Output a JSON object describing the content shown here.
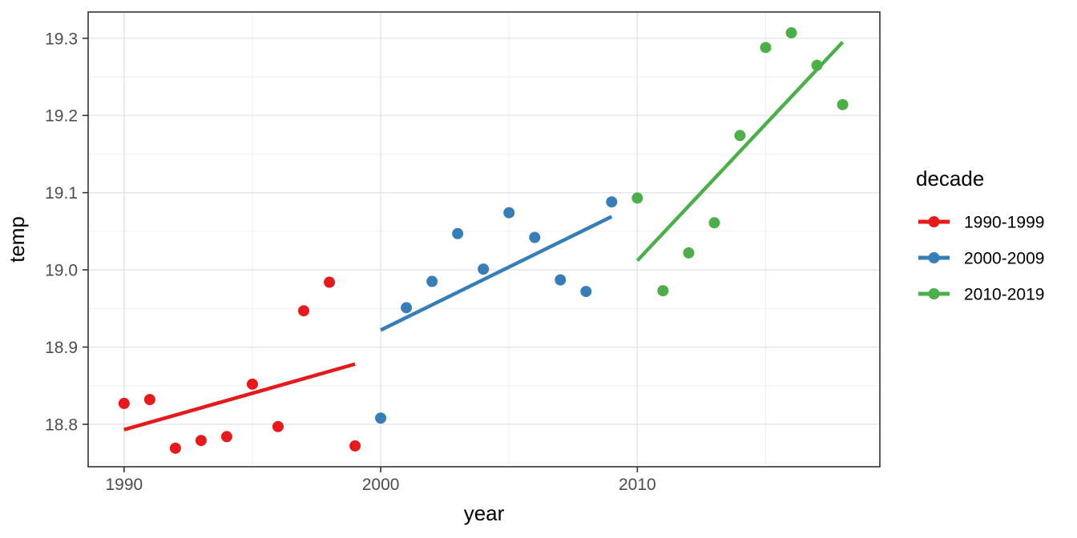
{
  "chart_data": {
    "type": "scatter",
    "title": "",
    "xlabel": "year",
    "ylabel": "temp",
    "grid": true,
    "x_axis": {
      "domain": [
        1988.6,
        2019.45
      ],
      "ticks": [
        1990,
        2000,
        2010
      ],
      "tick_labels": [
        "1990",
        "2000",
        "2010"
      ],
      "minor_ticks": [
        1995,
        2005,
        2015
      ]
    },
    "y_axis": {
      "domain": [
        18.745,
        19.334
      ],
      "ticks": [
        18.8,
        18.9,
        19.0,
        19.1,
        19.2,
        19.3
      ],
      "tick_labels": [
        "18.8",
        "18.9",
        "19.0",
        "19.1",
        "19.2",
        "19.3"
      ],
      "minor_ticks": [
        18.75,
        18.85,
        18.95,
        19.05,
        19.15,
        19.25
      ]
    },
    "legend": {
      "title": "decade",
      "position": "right",
      "entries": [
        {
          "label": "1990-1999",
          "color": "#E41A1C"
        },
        {
          "label": "2000-2009",
          "color": "#377EB8"
        },
        {
          "label": "2010-2019",
          "color": "#4DAF4A"
        }
      ]
    },
    "series": [
      {
        "name": "1990-1999",
        "color": "#E41A1C",
        "points": [
          [
            1990,
            18.827
          ],
          [
            1991,
            18.832
          ],
          [
            1992,
            18.769
          ],
          [
            1993,
            18.779
          ],
          [
            1994,
            18.784
          ],
          [
            1995,
            18.852
          ],
          [
            1996,
            18.797
          ],
          [
            1997,
            18.947
          ],
          [
            1998,
            18.984
          ],
          [
            1999,
            18.772
          ]
        ],
        "trend": {
          "x1": 1990,
          "y1": 18.793,
          "x2": 1999,
          "y2": 18.878
        }
      },
      {
        "name": "2000-2009",
        "color": "#377EB8",
        "points": [
          [
            2000,
            18.808
          ],
          [
            2001,
            18.951
          ],
          [
            2002,
            18.985
          ],
          [
            2003,
            19.047
          ],
          [
            2004,
            19.001
          ],
          [
            2005,
            19.074
          ],
          [
            2006,
            19.042
          ],
          [
            2007,
            18.987
          ],
          [
            2008,
            18.972
          ],
          [
            2009,
            19.088
          ]
        ],
        "trend": {
          "x1": 2000,
          "y1": 18.922,
          "x2": 2009,
          "y2": 19.069
        }
      },
      {
        "name": "2010-2019",
        "color": "#4DAF4A",
        "points": [
          [
            2010,
            19.093
          ],
          [
            2011,
            18.973
          ],
          [
            2012,
            19.022
          ],
          [
            2013,
            19.061
          ],
          [
            2014,
            19.174
          ],
          [
            2015,
            19.288
          ],
          [
            2016,
            19.307
          ],
          [
            2017,
            19.265
          ],
          [
            2018,
            19.214
          ]
        ],
        "trend": {
          "x1": 2010,
          "y1": 19.012,
          "x2": 2018,
          "y2": 19.295
        }
      }
    ],
    "style": {
      "panel_border_color": "#333333",
      "major_grid_color": "#e4e4e4",
      "minor_grid_color": "#efefef",
      "tick_color": "#333333",
      "tick_text_color": "#4d4d4d",
      "point_radius": 7,
      "line_width": 4.5
    }
  }
}
